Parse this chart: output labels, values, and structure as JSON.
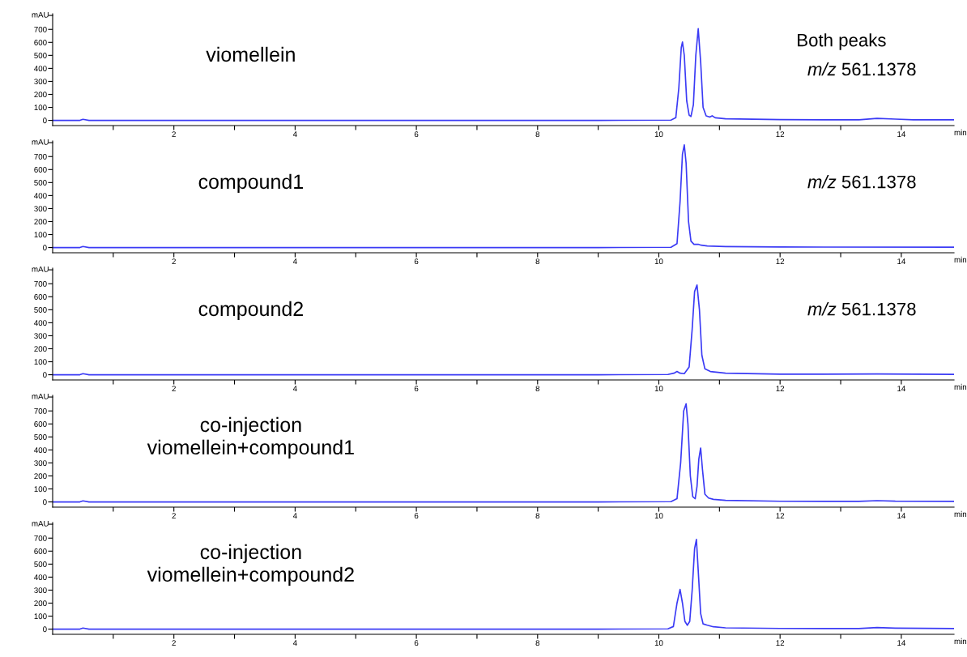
{
  "chart_data": [
    {
      "type": "line",
      "title": "viomellein",
      "xlabel": "min",
      "ylabel": "mAU",
      "annotations": [
        "Both peaks",
        "m/z 561.1378"
      ],
      "xlim": [
        0,
        14.87
      ],
      "ylim": [
        -40,
        820
      ],
      "xticks": [
        {
          "value": 1,
          "label": null
        },
        2,
        {
          "value": 3,
          "label": null
        },
        4,
        {
          "value": 5,
          "label": null
        },
        6,
        {
          "value": 7,
          "label": null
        },
        8,
        {
          "value": 9,
          "label": null
        },
        10,
        {
          "value": 11,
          "label": null
        },
        12,
        {
          "value": 13,
          "label": null
        },
        14
      ],
      "yticks": [
        0,
        100,
        200,
        300,
        400,
        500,
        600,
        700
      ],
      "grid": false,
      "legend": false,
      "marker": "none",
      "line_style": "solid",
      "series": [
        {
          "color": "#3b3bf5",
          "x": [
            0,
            0.45,
            0.5,
            0.6,
            9,
            10.2,
            10.28,
            10.33,
            10.37,
            10.39,
            10.42,
            10.46,
            10.5,
            10.53,
            10.57,
            10.61,
            10.65,
            10.69,
            10.73,
            10.78,
            10.84,
            10.88,
            10.93,
            11.1,
            12,
            13.3,
            13.6,
            13.9,
            14.2,
            14.87
          ],
          "values": [
            0,
            0,
            8,
            0,
            0,
            2,
            20,
            250,
            560,
            603,
            500,
            150,
            40,
            30,
            120,
            500,
            705,
            450,
            100,
            35,
            25,
            35,
            20,
            12,
            6,
            4,
            15,
            10,
            4,
            4
          ]
        }
      ]
    },
    {
      "type": "line",
      "title": "compound1",
      "xlabel": "min",
      "ylabel": "mAU",
      "annotations": [
        "m/z 561.1378"
      ],
      "xlim": [
        0,
        14.87
      ],
      "ylim": [
        -40,
        820
      ],
      "xticks": [
        {
          "value": 1,
          "label": null
        },
        2,
        {
          "value": 3,
          "label": null
        },
        4,
        {
          "value": 5,
          "label": null
        },
        6,
        {
          "value": 7,
          "label": null
        },
        8,
        {
          "value": 9,
          "label": null
        },
        10,
        {
          "value": 11,
          "label": null
        },
        12,
        {
          "value": 13,
          "label": null
        },
        14
      ],
      "yticks": [
        0,
        100,
        200,
        300,
        400,
        500,
        600,
        700
      ],
      "grid": false,
      "legend": false,
      "marker": "none",
      "line_style": "solid",
      "series": [
        {
          "color": "#3b3bf5",
          "x": [
            0,
            0.45,
            0.5,
            0.6,
            9,
            10.2,
            10.3,
            10.35,
            10.39,
            10.42,
            10.45,
            10.49,
            10.53,
            10.58,
            10.65,
            10.7,
            10.8,
            11.1,
            12,
            14.87
          ],
          "values": [
            0,
            0,
            8,
            0,
            0,
            2,
            30,
            350,
            720,
            790,
            650,
            200,
            50,
            25,
            25,
            18,
            12,
            8,
            4,
            3
          ]
        }
      ]
    },
    {
      "type": "line",
      "title": "compound2",
      "xlabel": "min",
      "ylabel": "mAU",
      "annotations": [
        "m/z 561.1378"
      ],
      "xlim": [
        0,
        14.87
      ],
      "ylim": [
        -40,
        820
      ],
      "xticks": [
        {
          "value": 1,
          "label": null
        },
        2,
        {
          "value": 3,
          "label": null
        },
        4,
        {
          "value": 5,
          "label": null
        },
        6,
        {
          "value": 7,
          "label": null
        },
        8,
        {
          "value": 9,
          "label": null
        },
        10,
        {
          "value": 11,
          "label": null
        },
        12,
        {
          "value": 13,
          "label": null
        },
        14
      ],
      "yticks": [
        0,
        100,
        200,
        300,
        400,
        500,
        600,
        700
      ],
      "grid": false,
      "legend": false,
      "marker": "none",
      "line_style": "solid",
      "series": [
        {
          "color": "#3b3bf5",
          "x": [
            0,
            0.45,
            0.5,
            0.6,
            9,
            10.15,
            10.25,
            10.3,
            10.35,
            10.42,
            10.5,
            10.55,
            10.59,
            10.63,
            10.67,
            10.71,
            10.76,
            10.85,
            11.1,
            12,
            13.6,
            14.87
          ],
          "values": [
            0,
            0,
            8,
            0,
            0,
            2,
            12,
            25,
            12,
            8,
            60,
            350,
            640,
            690,
            500,
            150,
            45,
            25,
            12,
            4,
            6,
            3
          ]
        }
      ]
    },
    {
      "type": "line",
      "title": "co-injection\nviomellein+compound1",
      "xlabel": "min",
      "ylabel": "mAU",
      "xlim": [
        0,
        14.87
      ],
      "ylim": [
        -40,
        820
      ],
      "xticks": [
        {
          "value": 1,
          "label": null
        },
        2,
        {
          "value": 3,
          "label": null
        },
        4,
        {
          "value": 5,
          "label": null
        },
        6,
        {
          "value": 7,
          "label": null
        },
        8,
        {
          "value": 9,
          "label": null
        },
        10,
        {
          "value": 11,
          "label": null
        },
        12,
        {
          "value": 13,
          "label": null
        },
        14
      ],
      "yticks": [
        0,
        100,
        200,
        300,
        400,
        500,
        600,
        700
      ],
      "grid": false,
      "legend": false,
      "marker": "none",
      "line_style": "solid",
      "series": [
        {
          "color": "#3b3bf5",
          "x": [
            0,
            0.45,
            0.5,
            0.6,
            9,
            10.2,
            10.3,
            10.36,
            10.41,
            10.45,
            10.48,
            10.52,
            10.56,
            10.6,
            10.63,
            10.66,
            10.69,
            10.72,
            10.76,
            10.82,
            10.9,
            11.1,
            12,
            13.3,
            13.6,
            13.9,
            14.87
          ],
          "values": [
            0,
            0,
            8,
            0,
            0,
            2,
            25,
            300,
            700,
            755,
            600,
            200,
            40,
            25,
            120,
            330,
            415,
            250,
            60,
            30,
            20,
            12,
            5,
            4,
            10,
            6,
            4
          ]
        }
      ]
    },
    {
      "type": "line",
      "title": "co-injection\nviomellein+compound2",
      "xlabel": "min",
      "ylabel": "mAU",
      "xlim": [
        0,
        14.87
      ],
      "ylim": [
        -40,
        820
      ],
      "xticks": [
        {
          "value": 1,
          "label": null
        },
        2,
        {
          "value": 3,
          "label": null
        },
        4,
        {
          "value": 5,
          "label": null
        },
        6,
        {
          "value": 7,
          "label": null
        },
        8,
        {
          "value": 9,
          "label": null
        },
        10,
        {
          "value": 11,
          "label": null
        },
        12,
        {
          "value": 13,
          "label": null
        },
        14
      ],
      "yticks": [
        0,
        100,
        200,
        300,
        400,
        500,
        600,
        700
      ],
      "grid": false,
      "legend": false,
      "marker": "none",
      "line_style": "solid",
      "series": [
        {
          "color": "#3b3bf5",
          "x": [
            0,
            0.45,
            0.5,
            0.6,
            9,
            10.15,
            10.24,
            10.3,
            10.35,
            10.39,
            10.43,
            10.47,
            10.51,
            10.55,
            10.59,
            10.62,
            10.65,
            10.69,
            10.73,
            10.8,
            10.9,
            11.1,
            12,
            13.3,
            13.6,
            13.9,
            14.87
          ],
          "values": [
            0,
            0,
            8,
            0,
            0,
            2,
            20,
            200,
            305,
            200,
            60,
            30,
            60,
            300,
            620,
            690,
            450,
            120,
            40,
            30,
            18,
            10,
            5,
            4,
            12,
            8,
            4
          ]
        }
      ]
    }
  ]
}
